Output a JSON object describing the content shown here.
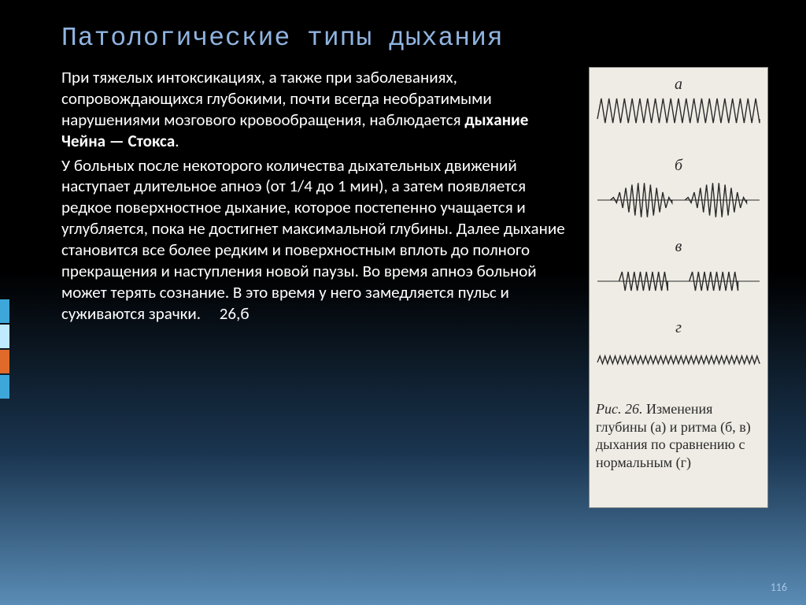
{
  "title": "Патологические типы дыхания",
  "paragraph1_a": "При тяжелых интоксикациях, а также при заболеваниях, сопровождающихся глубокими, почти всегда необратимыми нарушениями мозгового кровообращения, наблюдается ",
  "paragraph1_bold": "дыхание Чейна — Стокса",
  "paragraph1_b": ".",
  "paragraph2": "У больных после некоторого количества дыхательных движений наступает длительное апноэ (от 1/4 до 1 мин), а затем появляется редкое поверхностное дыхание, которое постепенно учащается и углубляется, пока не достигнет максимальной глубины. Далее дыхание становится все более редким и поверхностным вплоть до полного прекращения и наступления новой паузы. Во время апноэ больной может терять сознание. В это время у него замедляется пульс и суживаются зрачки.     26,б",
  "figure": {
    "background_color": "#efece5",
    "stroke_color": "#2a2a2a",
    "labels": {
      "a": "а",
      "b": "б",
      "c": "в",
      "d": "г"
    },
    "caption_prefix": "Рис. 26.",
    "caption_body": " Изменения глубины (а) и ритма (б, в) дыхания по сравнению с нормальным (г)",
    "waves": {
      "a": {
        "type": "uniform-deep",
        "amplitude": 26,
        "cycles": 21
      },
      "b": {
        "type": "cheyne-stokes",
        "bursts": 2,
        "cycles_per_burst": 10,
        "max_amplitude": 22
      },
      "c": {
        "type": "biot",
        "bursts": 2,
        "cycles_per_burst": 8,
        "amplitude": 12
      },
      "d": {
        "type": "uniform-shallow",
        "amplitude": 8,
        "cycles": 32
      }
    }
  },
  "tabs": [
    "#3da7d9",
    "#bfeaff",
    "#e06a2a",
    "#3da7d9"
  ],
  "page_number": "116"
}
